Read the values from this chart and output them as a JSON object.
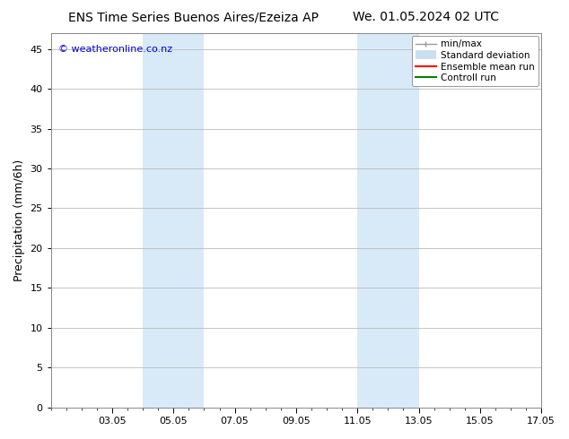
{
  "title_left": "ENS Time Series Buenos Aires/Ezeiza AP",
  "title_right": "We. 01.05.2024 02 UTC",
  "ylabel": "Precipitation (mm/6h)",
  "watermark": "© weatheronline.co.nz",
  "watermark_color": "#0000dd",
  "ylim": [
    0,
    47
  ],
  "yticks": [
    0,
    5,
    10,
    15,
    20,
    25,
    30,
    35,
    40,
    45
  ],
  "xtick_positions": [
    3,
    5,
    7,
    9,
    11,
    13,
    15,
    17
  ],
  "xtick_labels": [
    "03.05",
    "05.05",
    "07.05",
    "09.05",
    "11.05",
    "13.05",
    "15.05",
    "17.05"
  ],
  "x_min": 1.0,
  "x_max": 17.0,
  "shaded_regions": [
    {
      "x_start": 4.0,
      "x_end": 6.0,
      "color": "#d8eaf8"
    },
    {
      "x_start": 11.0,
      "x_end": 13.0,
      "color": "#d8eaf8"
    }
  ],
  "legend_entries": [
    {
      "label": "min/max",
      "color": "#999999",
      "linewidth": 1.0
    },
    {
      "label": "Standard deviation",
      "color": "#c8dff0",
      "linewidth": 7
    },
    {
      "label": "Ensemble mean run",
      "color": "red",
      "linewidth": 1.5
    },
    {
      "label": "Controll run",
      "color": "green",
      "linewidth": 1.5
    }
  ],
  "background_color": "#ffffff",
  "plot_bg_color": "#ffffff",
  "grid_color": "#bbbbbb",
  "title_fontsize": 10,
  "tick_fontsize": 8,
  "label_fontsize": 9,
  "watermark_fontsize": 8,
  "legend_fontsize": 7.5
}
